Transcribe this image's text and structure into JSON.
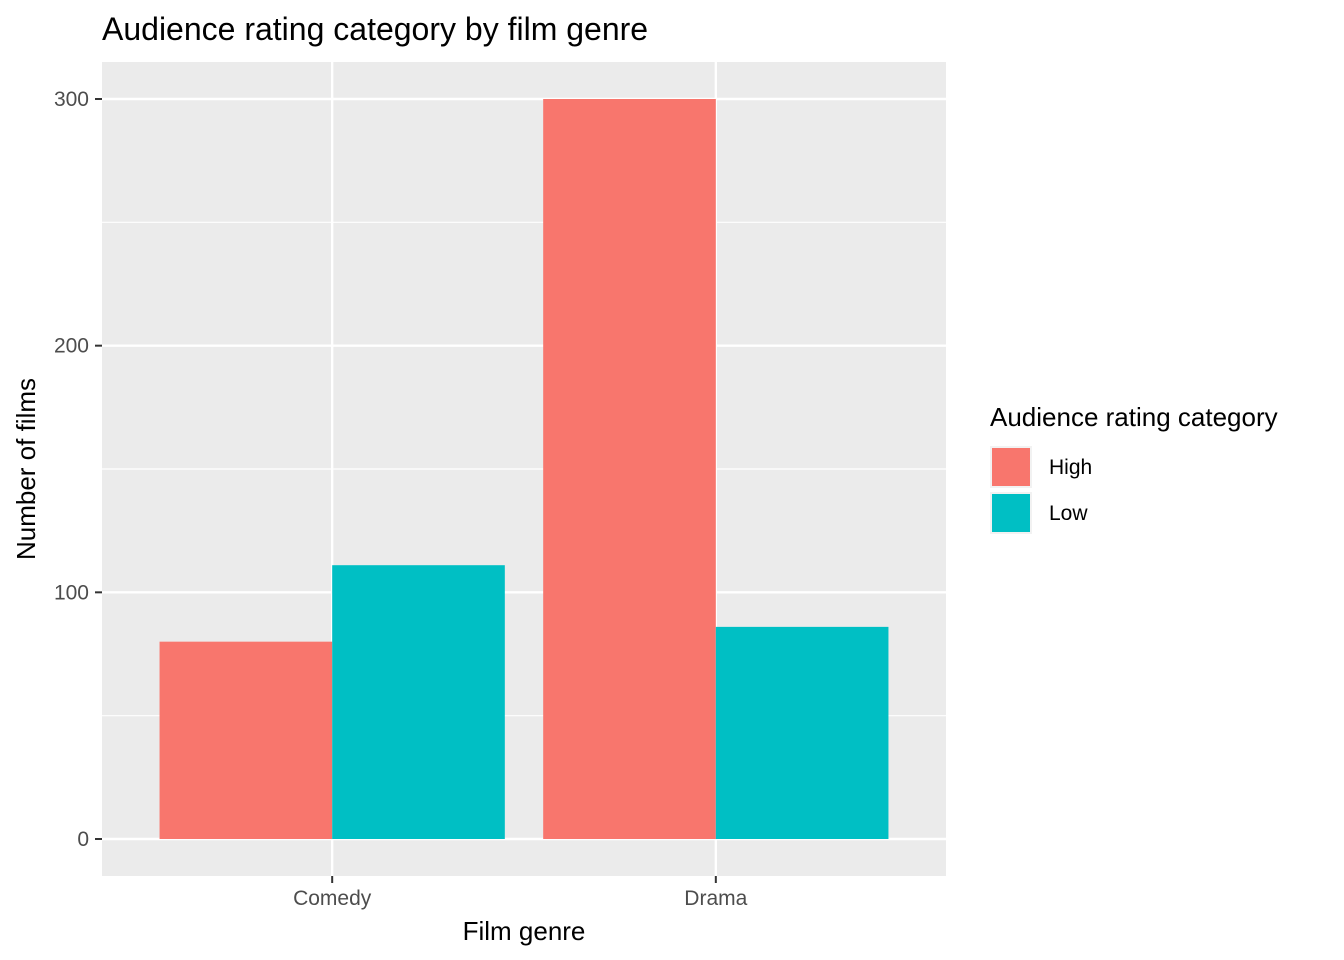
{
  "chart_data": {
    "type": "bar",
    "title": "Audience rating category by film genre",
    "xlabel": "Film genre",
    "ylabel": "Number of films",
    "categories": [
      "Comedy",
      "Drama"
    ],
    "series": [
      {
        "name": "High",
        "color": "#F8766D",
        "values": [
          80,
          300
        ]
      },
      {
        "name": "Low",
        "color": "#00BFC4",
        "values": [
          111,
          86
        ]
      }
    ],
    "ylim": [
      -15,
      315
    ],
    "yticks": [
      0,
      100,
      200,
      300
    ],
    "grid": true,
    "legend": {
      "title": "Audience rating category",
      "placement": "right"
    }
  }
}
